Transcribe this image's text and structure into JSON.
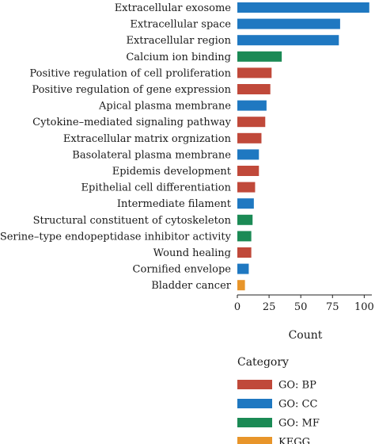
{
  "chart_data": {
    "type": "bar",
    "orientation": "horizontal",
    "categories": [
      "Extracellular exosome",
      "Extracellular space",
      "Extracellular region",
      "Calcium ion binding",
      "Positive regulation of cell proliferation",
      "Positive regulation of gene expression",
      "Apical plasma membrane",
      "Cytokine–mediated signaling pathway",
      "Extracellular matrix orgnization",
      "Basolateral plasma membrane",
      "Epidemis development",
      "Epithelial cell differentiation",
      "Intermediate filament",
      "Structural constituent of cytoskeleton",
      "Serine–type endopeptidase inhibitor activity",
      "Wound healing",
      "Cornified envelope",
      "Bladder cancer"
    ],
    "values": [
      104,
      81,
      80,
      35,
      27,
      26,
      23,
      22,
      19,
      17,
      17,
      14,
      13,
      12,
      11,
      11,
      9,
      6
    ],
    "bar_categories": [
      "GO: CC",
      "GO: CC",
      "GO: CC",
      "GO: MF",
      "GO: BP",
      "GO: BP",
      "GO: CC",
      "GO: BP",
      "GO: BP",
      "GO: CC",
      "GO: BP",
      "GO: BP",
      "GO: CC",
      "GO: MF",
      "GO: MF",
      "GO: BP",
      "GO: CC",
      "KEGG"
    ],
    "xlabel": "Count",
    "ylabel": "",
    "xlim": [
      0,
      106
    ],
    "xticks": [
      0,
      25,
      50,
      75,
      100
    ],
    "grid": false,
    "legend": {
      "title": "Category",
      "placement": "bottom-left",
      "entries": [
        {
          "name": "GO: BP",
          "color": "#c0493a"
        },
        {
          "name": "GO: CC",
          "color": "#1f78c1"
        },
        {
          "name": "GO: MF",
          "color": "#1b8a55"
        },
        {
          "name": "KEGG",
          "color": "#e8952a"
        }
      ]
    }
  }
}
